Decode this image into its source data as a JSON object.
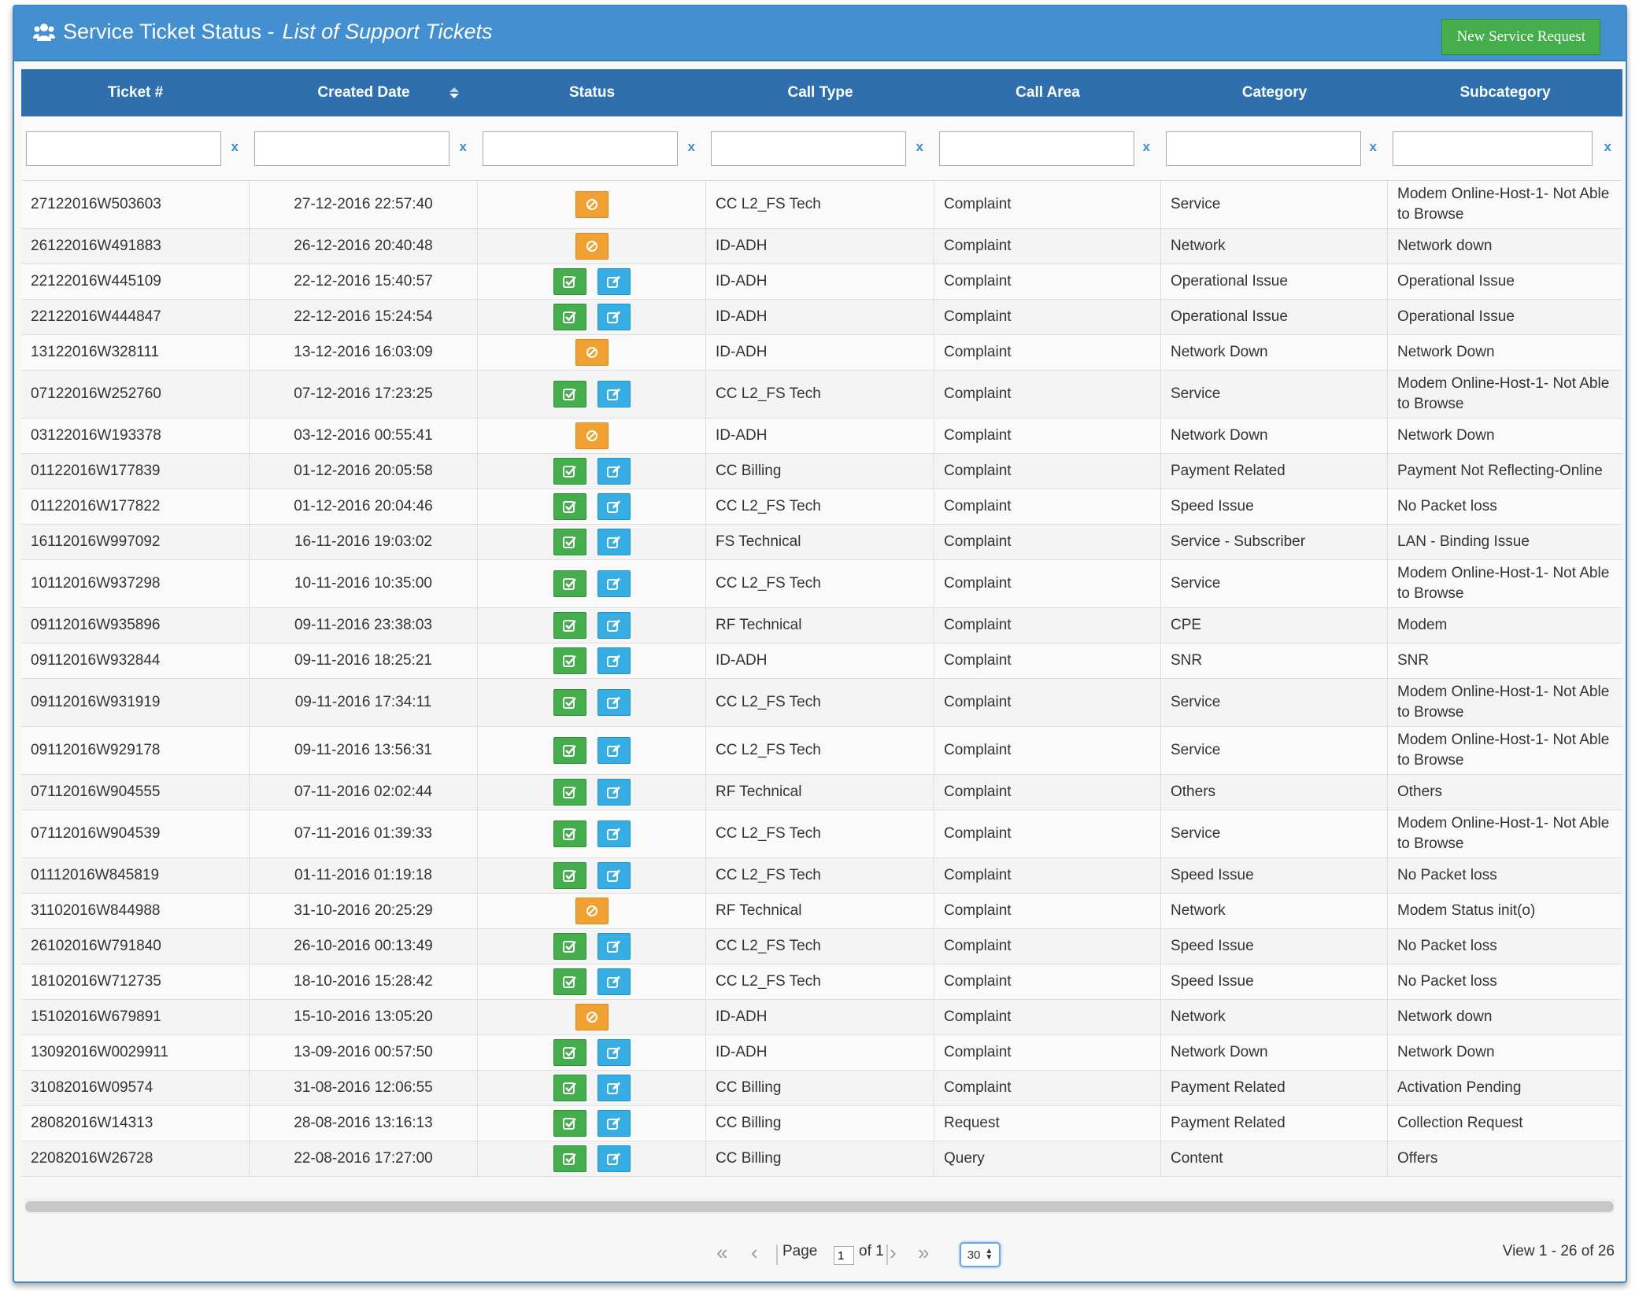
{
  "header": {
    "title": "Service Ticket Status - ",
    "subtitle": "List of Support Tickets",
    "new_button": "New Service Request"
  },
  "columns": [
    "Ticket #",
    "Created Date",
    "Status",
    "Call Type",
    "Call Area",
    "Category",
    "Subcategory"
  ],
  "filter_clear": "x",
  "rows": [
    {
      "ticket": "27122016W503603",
      "date": "27-12-2016 22:57:40",
      "status": "blocked",
      "call_type": "CC L2_FS Tech",
      "call_area": "Complaint",
      "category": "Service",
      "subcategory": "Modem Online-Host-1- Not Able to Browse"
    },
    {
      "ticket": "26122016W491883",
      "date": "26-12-2016 20:40:48",
      "status": "blocked",
      "call_type": "ID-ADH",
      "call_area": "Complaint",
      "category": "Network",
      "subcategory": "Network down"
    },
    {
      "ticket": "22122016W445109",
      "date": "22-12-2016 15:40:57",
      "status": "open",
      "call_type": "ID-ADH",
      "call_area": "Complaint",
      "category": "Operational Issue",
      "subcategory": "Operational Issue"
    },
    {
      "ticket": "22122016W444847",
      "date": "22-12-2016 15:24:54",
      "status": "open",
      "call_type": "ID-ADH",
      "call_area": "Complaint",
      "category": "Operational Issue",
      "subcategory": "Operational Issue"
    },
    {
      "ticket": "13122016W328111",
      "date": "13-12-2016 16:03:09",
      "status": "blocked",
      "call_type": "ID-ADH",
      "call_area": "Complaint",
      "category": "Network Down",
      "subcategory": "Network Down"
    },
    {
      "ticket": "07122016W252760",
      "date": "07-12-2016 17:23:25",
      "status": "open",
      "call_type": "CC L2_FS Tech",
      "call_area": "Complaint",
      "category": "Service",
      "subcategory": "Modem Online-Host-1- Not Able to Browse"
    },
    {
      "ticket": "03122016W193378",
      "date": "03-12-2016 00:55:41",
      "status": "blocked",
      "call_type": "ID-ADH",
      "call_area": "Complaint",
      "category": "Network Down",
      "subcategory": "Network Down"
    },
    {
      "ticket": "01122016W177839",
      "date": "01-12-2016 20:05:58",
      "status": "open",
      "call_type": "CC Billing",
      "call_area": "Complaint",
      "category": "Payment Related",
      "subcategory": "Payment Not Reflecting-Online"
    },
    {
      "ticket": "01122016W177822",
      "date": "01-12-2016 20:04:46",
      "status": "open",
      "call_type": "CC L2_FS Tech",
      "call_area": "Complaint",
      "category": "Speed Issue",
      "subcategory": "No Packet loss"
    },
    {
      "ticket": "16112016W997092",
      "date": "16-11-2016 19:03:02",
      "status": "open",
      "call_type": "FS Technical",
      "call_area": "Complaint",
      "category": "Service - Subscriber",
      "subcategory": "LAN - Binding Issue"
    },
    {
      "ticket": "10112016W937298",
      "date": "10-11-2016 10:35:00",
      "status": "open",
      "call_type": "CC L2_FS Tech",
      "call_area": "Complaint",
      "category": "Service",
      "subcategory": "Modem Online-Host-1- Not Able to Browse"
    },
    {
      "ticket": "09112016W935896",
      "date": "09-11-2016 23:38:03",
      "status": "open",
      "call_type": "RF Technical",
      "call_area": "Complaint",
      "category": "CPE",
      "subcategory": "Modem"
    },
    {
      "ticket": "09112016W932844",
      "date": "09-11-2016 18:25:21",
      "status": "open",
      "call_type": "ID-ADH",
      "call_area": "Complaint",
      "category": "SNR",
      "subcategory": "SNR"
    },
    {
      "ticket": "09112016W931919",
      "date": "09-11-2016 17:34:11",
      "status": "open",
      "call_type": "CC L2_FS Tech",
      "call_area": "Complaint",
      "category": "Service",
      "subcategory": "Modem Online-Host-1- Not Able to Browse"
    },
    {
      "ticket": "09112016W929178",
      "date": "09-11-2016 13:56:31",
      "status": "open",
      "call_type": "CC L2_FS Tech",
      "call_area": "Complaint",
      "category": "Service",
      "subcategory": "Modem Online-Host-1- Not Able to Browse"
    },
    {
      "ticket": "07112016W904555",
      "date": "07-11-2016 02:02:44",
      "status": "open",
      "call_type": "RF Technical",
      "call_area": "Complaint",
      "category": "Others",
      "subcategory": "Others"
    },
    {
      "ticket": "07112016W904539",
      "date": "07-11-2016 01:39:33",
      "status": "open",
      "call_type": "CC L2_FS Tech",
      "call_area": "Complaint",
      "category": "Service",
      "subcategory": "Modem Online-Host-1- Not Able to Browse"
    },
    {
      "ticket": "01112016W845819",
      "date": "01-11-2016 01:19:18",
      "status": "open",
      "call_type": "CC L2_FS Tech",
      "call_area": "Complaint",
      "category": "Speed Issue",
      "subcategory": "No Packet loss"
    },
    {
      "ticket": "31102016W844988",
      "date": "31-10-2016 20:25:29",
      "status": "blocked",
      "call_type": "RF Technical",
      "call_area": "Complaint",
      "category": "Network",
      "subcategory": "Modem Status init(o)"
    },
    {
      "ticket": "26102016W791840",
      "date": "26-10-2016 00:13:49",
      "status": "open",
      "call_type": "CC L2_FS Tech",
      "call_area": "Complaint",
      "category": "Speed Issue",
      "subcategory": "No Packet loss"
    },
    {
      "ticket": "18102016W712735",
      "date": "18-10-2016 15:28:42",
      "status": "open",
      "call_type": "CC L2_FS Tech",
      "call_area": "Complaint",
      "category": "Speed Issue",
      "subcategory": "No Packet loss"
    },
    {
      "ticket": "15102016W679891",
      "date": "15-10-2016 13:05:20",
      "status": "blocked",
      "call_type": "ID-ADH",
      "call_area": "Complaint",
      "category": "Network",
      "subcategory": "Network down"
    },
    {
      "ticket": "13092016W0029911",
      "date": "13-09-2016 00:57:50",
      "status": "open",
      "call_type": "ID-ADH",
      "call_area": "Complaint",
      "category": "Network Down",
      "subcategory": "Network Down"
    },
    {
      "ticket": "31082016W09574",
      "date": "31-08-2016 12:06:55",
      "status": "open",
      "call_type": "CC Billing",
      "call_area": "Complaint",
      "category": "Payment Related",
      "subcategory": "Activation Pending"
    },
    {
      "ticket": "28082016W14313",
      "date": "28-08-2016 13:16:13",
      "status": "open",
      "call_type": "CC Billing",
      "call_area": "Request",
      "category": "Payment Related",
      "subcategory": "Collection Request"
    },
    {
      "ticket": "22082016W26728",
      "date": "22-08-2016 17:27:00",
      "status": "open",
      "call_type": "CC Billing",
      "call_area": "Query",
      "category": "Content",
      "subcategory": "Offers"
    }
  ],
  "pager": {
    "page_label": "Page",
    "page_value": "1",
    "of_label": "of 1",
    "rows_per_page": "30",
    "view_text": "View 1 - 26 of 26"
  },
  "colors": {
    "header_bg": "#438fd0",
    "column_header_bg": "#2f6fae",
    "open_ok": "#43ae4b",
    "edit": "#36aee3",
    "blocked": "#f0a131"
  }
}
